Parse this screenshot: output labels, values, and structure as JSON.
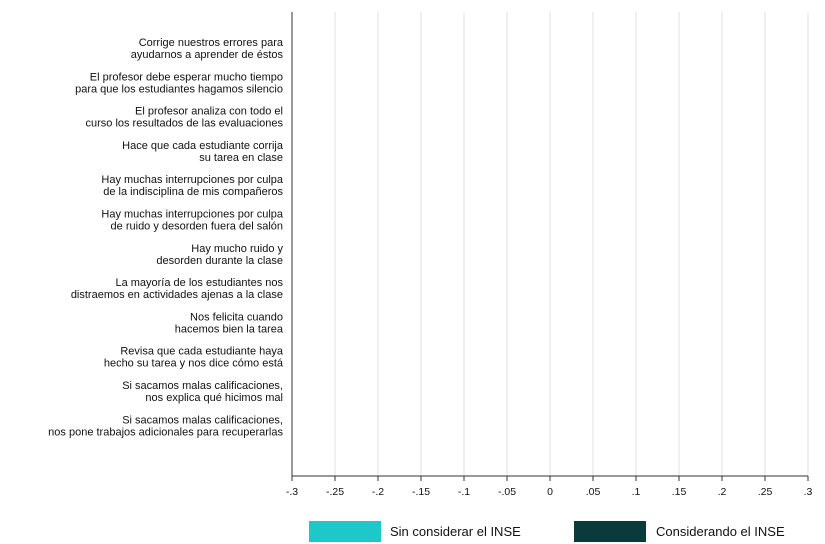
{
  "chart_data": {
    "type": "bar",
    "orientation": "horizontal",
    "title": "",
    "xlabel": "",
    "ylabel": "",
    "xlim": [
      -0.3,
      0.3
    ],
    "grid": true,
    "legend_position": "bottom-right",
    "categories": [
      [
        "Corrige nuestros errores para",
        "ayudarnos a aprender de éstos"
      ],
      [
        "El profesor debe esperar mucho tiempo",
        "para que los estudiantes hagamos silencio"
      ],
      [
        "El profesor analiza con todo el",
        "curso los resultados de las evaluaciones"
      ],
      [
        "Hace que cada estudiante corrija",
        "su tarea en clase"
      ],
      [
        "Hay muchas interrupciones por culpa",
        "de la indisciplina de mis compañeros"
      ],
      [
        "Hay muchas interrupciones por culpa",
        "de ruido y desorden fuera del salón"
      ],
      [
        "Hay mucho ruido y",
        "desorden durante la clase"
      ],
      [
        "La mayoría de los estudiantes nos",
        "distraemos en actividades ajenas a la clase"
      ],
      [
        "Nos felicita cuando",
        "hacemos bien la tarea"
      ],
      [
        "Revisa que cada estudiante haya",
        "hecho su tarea y nos dice cómo está"
      ],
      [
        "Si sacamos malas calificaciones,",
        "nos explica qué hicimos mal"
      ],
      [
        "Si sacamos malas calificaciones,",
        "nos pone trabajos adicionales para recuperarlas"
      ]
    ],
    "x_ticks": [
      -0.3,
      -0.25,
      -0.2,
      -0.15,
      -0.1,
      -0.05,
      0,
      0.05,
      0.1,
      0.15,
      0.2,
      0.25,
      0.3
    ],
    "x_tick_labels": [
      "-.3",
      "-.25",
      "-.2",
      "-.15",
      "-.1",
      "-.05",
      "0",
      ".05",
      ".1",
      ".15",
      ".2",
      ".25",
      ".3"
    ],
    "series": [
      {
        "name": "Sin considerar el INSE",
        "color": "#1ec8c8",
        "values": [
          null,
          null,
          null,
          null,
          null,
          null,
          null,
          null,
          null,
          null,
          null,
          null
        ]
      },
      {
        "name": "Considerando el INSE",
        "color": "#0b3a3a",
        "values": [
          null,
          null,
          null,
          null,
          null,
          null,
          null,
          null,
          null,
          null,
          null,
          null
        ]
      }
    ]
  }
}
